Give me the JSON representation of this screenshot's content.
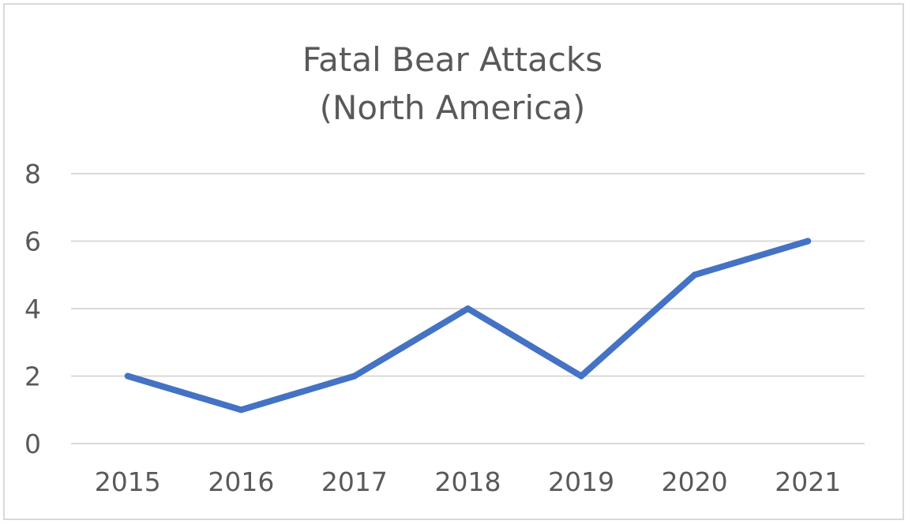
{
  "chart_data": {
    "type": "line",
    "title_lines": [
      "Fatal Bear Attacks",
      "(North America)"
    ],
    "xlabel": "",
    "ylabel": "",
    "categories": [
      "2015",
      "2016",
      "2017",
      "2018",
      "2019",
      "2020",
      "2021"
    ],
    "series": [
      {
        "values": [
          2,
          1,
          2,
          4,
          2,
          5,
          6
        ],
        "color": "#4472c4"
      }
    ],
    "ylim": [
      0,
      8
    ],
    "yticks": [
      "0",
      "2",
      "4",
      "6",
      "8"
    ],
    "grid": true,
    "legend": "none",
    "gridline_color": "#d9d9d9",
    "text_color": "#595959"
  }
}
